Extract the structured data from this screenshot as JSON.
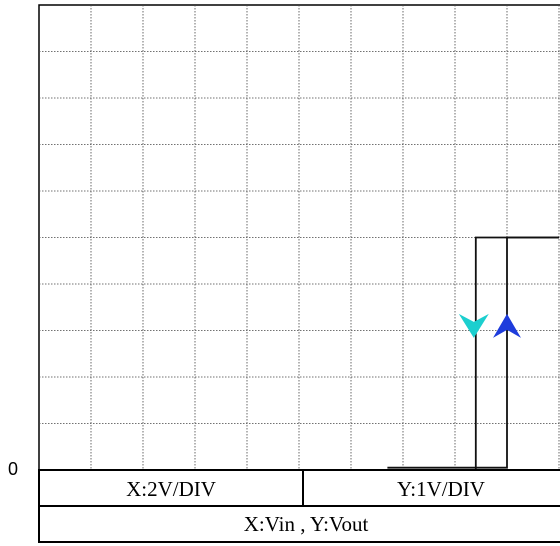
{
  "chart_data": {
    "type": "line",
    "title": "",
    "xlabel": "",
    "ylabel": "",
    "grid": true,
    "y_tick_labels": [
      "0"
    ],
    "divisions": {
      "x": 10,
      "y": 10
    },
    "series": [
      {
        "name": "",
        "direction": "decreasing-input",
        "arrow_color": "#1ccfcf",
        "points": [
          {
            "x_div": 0.0,
            "y_div": 0.0
          },
          {
            "x_div": 8.4,
            "y_div": 0.0
          },
          {
            "x_div": 8.4,
            "y_div": 5.0
          },
          {
            "x_div": 10.0,
            "y_div": 5.0
          }
        ]
      },
      {
        "name": "",
        "direction": "increasing-input",
        "arrow_color": "#1e3cdc",
        "points": [
          {
            "x_div": 6.7,
            "y_div": 0.05
          },
          {
            "x_div": 9.0,
            "y_div": 0.05
          },
          {
            "x_div": 9.0,
            "y_div": 5.0
          },
          {
            "x_div": 10.0,
            "y_div": 5.0
          }
        ]
      }
    ]
  },
  "scale_table": {
    "x_scale": "X:2V/DIV",
    "y_scale": "Y:1V/DIV",
    "axes": "X:Vin , Y:Vout"
  }
}
